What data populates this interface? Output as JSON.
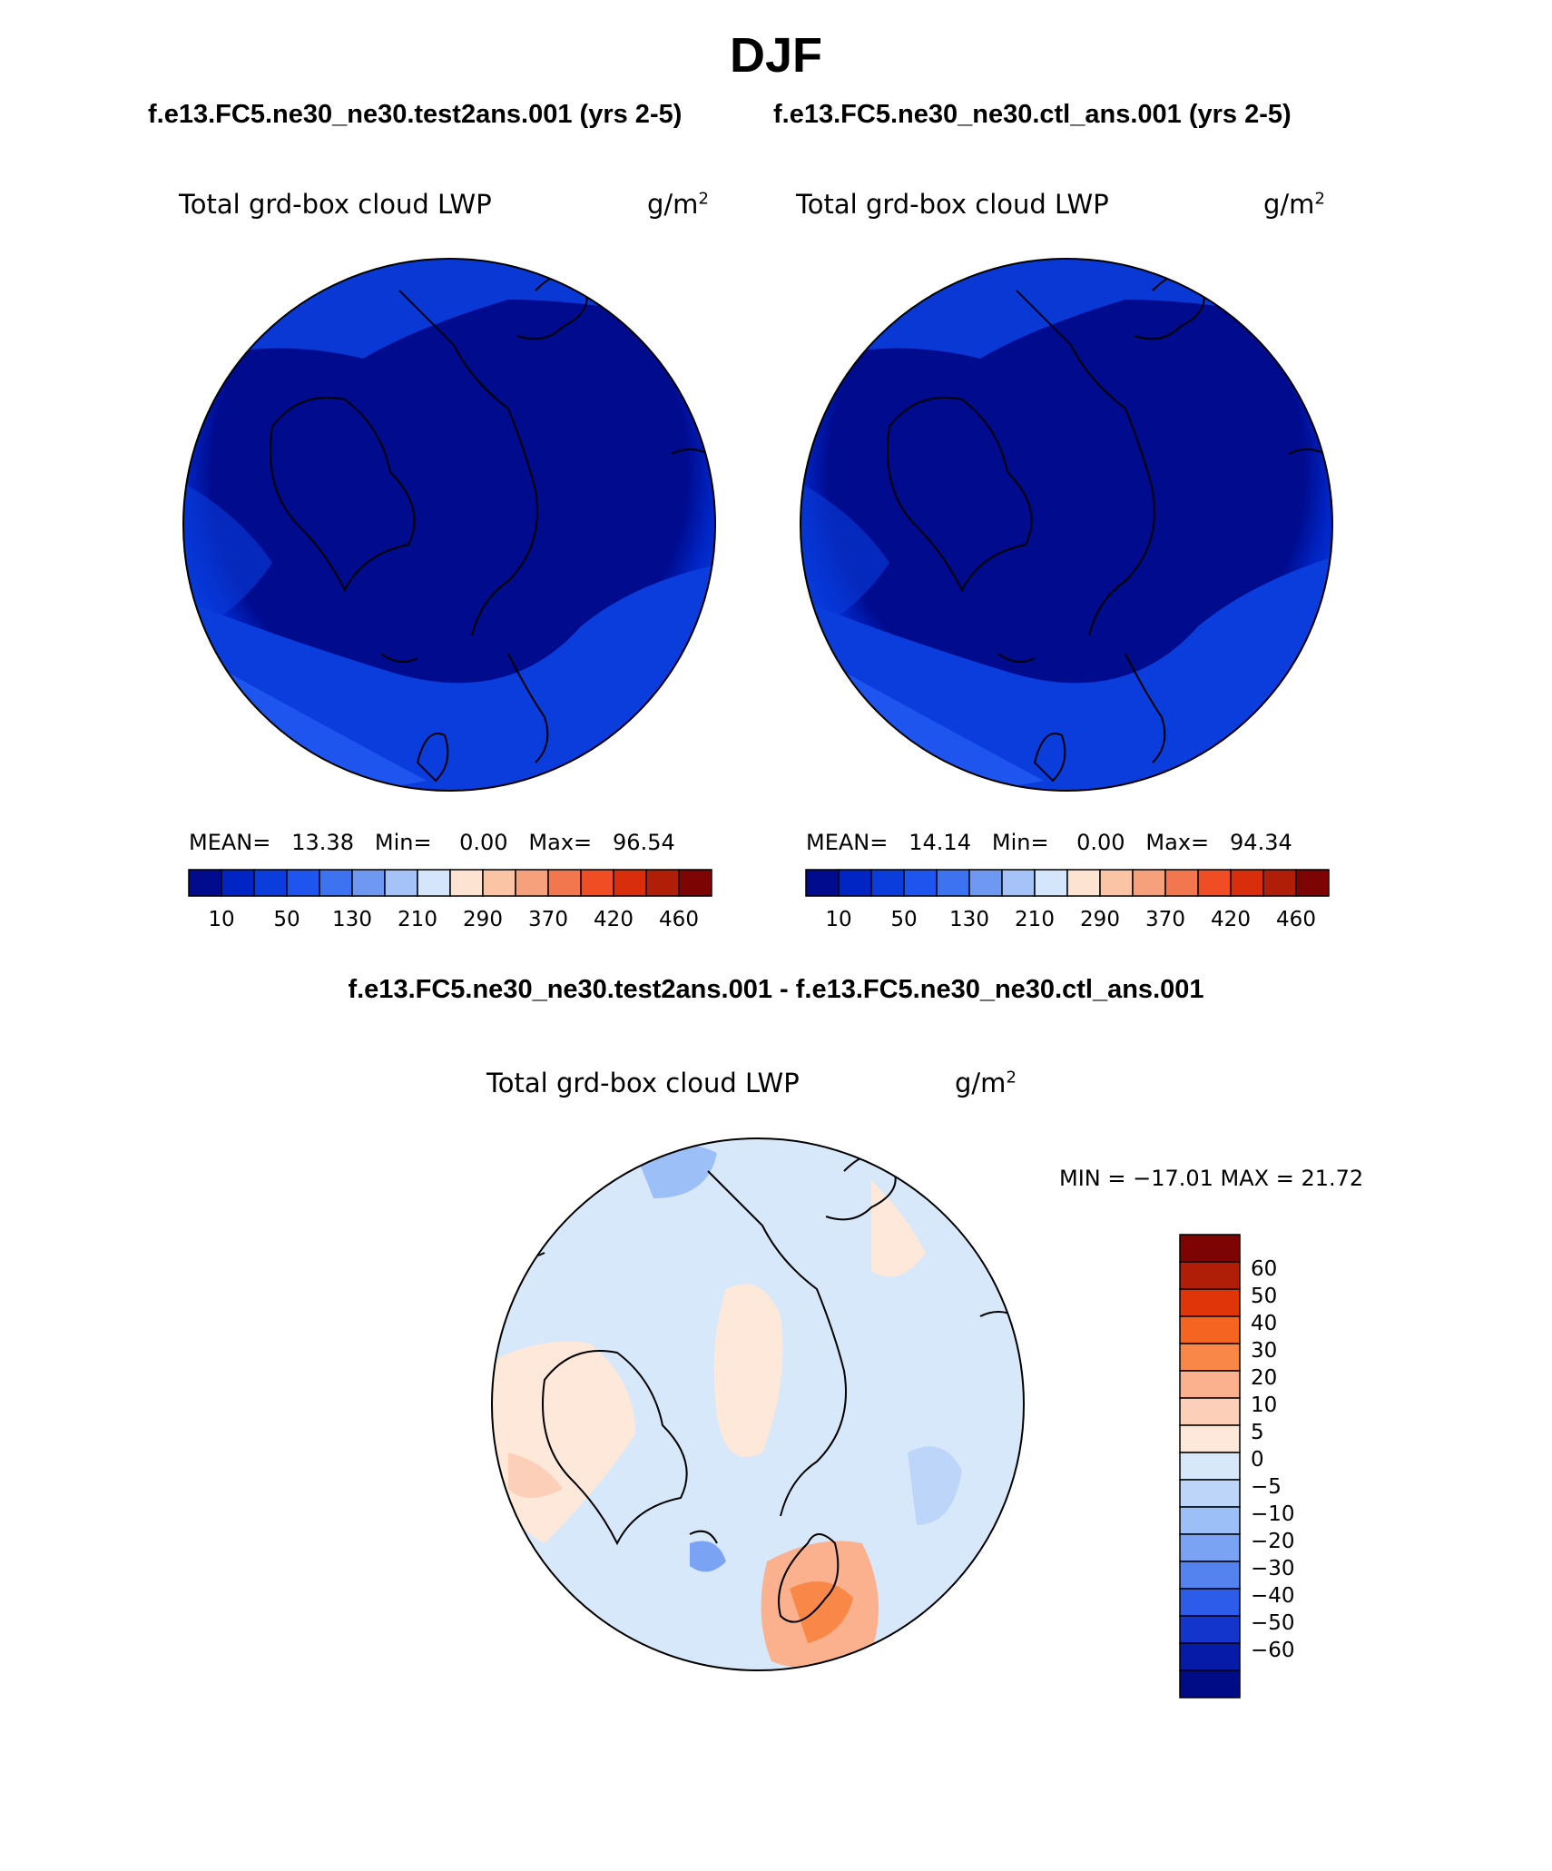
{
  "season": "DJF",
  "case_titles": {
    "test": "f.e13.FC5.ne30_ne30.test2ans.001 (yrs 2-5)",
    "control": "f.e13.FC5.ne30_ne30.ctl_ans.001 (yrs 2-5)",
    "difference": "f.e13.FC5.ne30_ne30.test2ans.001 - f.e13.FC5.ne30_ne30.ctl_ans.001"
  },
  "variable": {
    "name": "Total grd-box cloud LWP",
    "units_base": "g/m",
    "units_exp": "2"
  },
  "panels": {
    "test": {
      "mean_label": "MEAN=",
      "mean": "13.38",
      "min_label": "Min=",
      "min": "0.00",
      "max_label": "Max=",
      "max": "96.54"
    },
    "control": {
      "mean_label": "MEAN=",
      "mean": "14.14",
      "min_label": "Min=",
      "min": "0.00",
      "max_label": "Max=",
      "max": "94.34"
    },
    "difference": {
      "minmax_text": "MIN = −17.01 MAX =  21.72"
    }
  },
  "colorbar_abs": {
    "colors": [
      "#000b8e",
      "#0025c4",
      "#0a3ddc",
      "#1e55ef",
      "#3d72f0",
      "#6f98f2",
      "#a6c3f7",
      "#d4e6fb",
      "#fde3d1",
      "#fbc4a4",
      "#f7a07c",
      "#f3774e",
      "#f04d24",
      "#d82e0b",
      "#b01e07",
      "#7e0303"
    ],
    "labels": [
      "10",
      "50",
      "130",
      "210",
      "290",
      "370",
      "420",
      "460"
    ]
  },
  "colorbar_diff": {
    "colors": [
      "#7e0303",
      "#b01e07",
      "#e03409",
      "#f56420",
      "#f98848",
      "#fbb18e",
      "#fcd0b8",
      "#fde8da",
      "#d7e8fb",
      "#bcd5f8",
      "#9bbff6",
      "#7aa3f3",
      "#5483ef",
      "#2d5cea",
      "#1335cc",
      "#061ba8",
      "#000c85"
    ],
    "labels": [
      "60",
      "50",
      "40",
      "30",
      "20",
      "10",
      "5",
      "0",
      "−5",
      "−10",
      "−20",
      "−30",
      "−40",
      "−50",
      "−60"
    ]
  },
  "chart_data": {
    "type": "map",
    "projection": "north-polar stereographic",
    "title": "DJF",
    "maps": [
      {
        "name": "test",
        "field": "Total grd-box cloud LWP",
        "units": "g/m2",
        "mean": 13.38,
        "min": 0.0,
        "max": 96.54
      },
      {
        "name": "control",
        "field": "Total grd-box cloud LWP",
        "units": "g/m2",
        "mean": 14.14,
        "min": 0.0,
        "max": 94.34
      },
      {
        "name": "difference",
        "field": "Total grd-box cloud LWP",
        "units": "g/m2",
        "min": -17.01,
        "max": 21.72
      }
    ],
    "abs_contour_levels": [
      10,
      50,
      130,
      210,
      290,
      370,
      420,
      460
    ],
    "diff_contour_levels": [
      -60,
      -50,
      -40,
      -30,
      -20,
      -10,
      -5,
      0,
      5,
      10,
      20,
      30,
      40,
      50,
      60
    ]
  }
}
